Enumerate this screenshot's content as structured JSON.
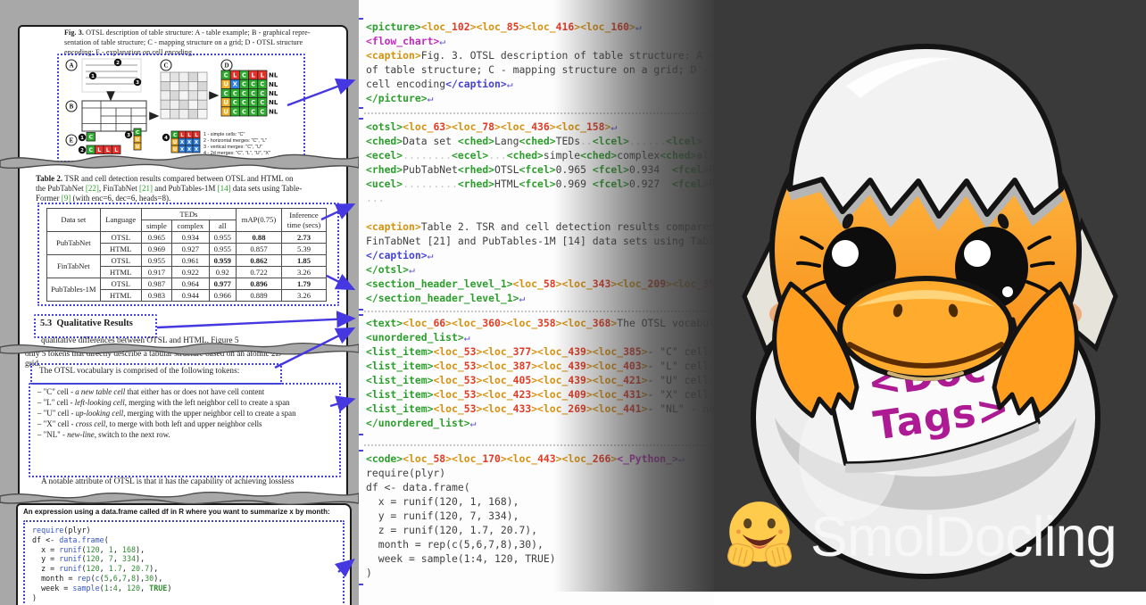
{
  "branding": {
    "title": "SmolDocling",
    "hug_emoji": "hugging-face-emoji"
  },
  "duck": {
    "paper_line1": "<Doc",
    "paper_line2": "Tags>"
  },
  "colors": {
    "tag_green": "#2b9e2b",
    "tag_orange": "#d6920f",
    "loc_number_red": "#e23b24",
    "tag_magenta": "#c32ac3",
    "tag_blue": "#4643cf",
    "return_glyph_blue": "#5a50d8",
    "arrow_blue": "#4538e0",
    "region_box_blue": "#4345d6",
    "panel_dark": "#3a3a3a",
    "duck_orange": "#f89b1c",
    "paper_note_magenta": "#ad1a94"
  },
  "paper": {
    "fig_caption": {
      "lead": "Fig. 3.",
      "line1": " OTSL description of table structure: A - table example; B - graphical repre-",
      "line2": "sentation of table structure; C - mapping structure on a grid; D - OTSL structure",
      "line3": "encoding; E - explanation on cell encoding"
    },
    "figure": {
      "part_labels": [
        "A",
        "B",
        "C",
        "D",
        "E"
      ],
      "a_marks": [
        "1",
        "2",
        "3"
      ],
      "d_grid": [
        [
          "C",
          "L",
          "C",
          "L",
          "L"
        ],
        [
          "U",
          "X",
          "C",
          "C",
          "C"
        ],
        [
          "C",
          "C",
          "C",
          "C",
          "C"
        ],
        [
          "U",
          "C",
          "C",
          "C",
          "C"
        ],
        [
          "U",
          "C",
          "C",
          "C",
          "C"
        ]
      ],
      "row_suffix": "NL",
      "e_items": [
        {
          "num": "1",
          "cells": [
            [
              "C"
            ]
          ]
        },
        {
          "num": "2",
          "cells": [
            [
              "C",
              "L",
              "L",
              "L"
            ]
          ]
        },
        {
          "num": "3",
          "cells": [
            [
              "C"
            ],
            [
              "U"
            ],
            [
              "U"
            ]
          ]
        },
        {
          "num": "4",
          "cells": [
            [
              "C",
              "L",
              "L",
              "L"
            ],
            [
              "U",
              "X",
              "X",
              "X"
            ],
            [
              "U",
              "X",
              "X",
              "X"
            ]
          ]
        }
      ],
      "legend": [
        "1 - simple cells: \"C\"",
        "2 - horizontal merges: \"C\", \"L\"",
        "3 - vertical merges: \"C\", \"U\"",
        "4 - 2d merges: \"C\", \"L\", \"U\", \"X\""
      ]
    },
    "table2": {
      "caption_lead": "Table 2.",
      "caption_lines": [
        " TSR and cell detection results compared between OTSL and HTML on",
        "the PubTabNet [22], FinTabNet [21] and PubTables-1M [14] data sets using Table-",
        "Former [9] (with enc=6, dec=6, heads=8)."
      ],
      "col_dataset": "Data set",
      "col_language": "Language",
      "col_teds": "TEDs",
      "col_simple": "simple",
      "col_complex": "complex",
      "col_all": "all",
      "col_map": "mAP(0.75)",
      "col_inference": "Inference",
      "col_time": "time (secs)",
      "rows": [
        {
          "dataset": "PubTabNet",
          "language": "OTSL",
          "simple": "0.965",
          "complex": "0.934",
          "all": "0.955",
          "map": "0.88",
          "time": "2.73",
          "bold": [
            "map",
            "time"
          ]
        },
        {
          "dataset": "",
          "language": "HTML",
          "simple": "0.969",
          "complex": "0.927",
          "all": "0.955",
          "map": "0.857",
          "time": "5.39",
          "bold": []
        },
        {
          "dataset": "FinTabNet",
          "language": "OTSL",
          "simple": "0.955",
          "complex": "0.961",
          "all": "0.959",
          "map": "0.862",
          "time": "1.85",
          "bold": [
            "all",
            "map",
            "time"
          ]
        },
        {
          "dataset": "",
          "language": "HTML",
          "simple": "0.917",
          "complex": "0.922",
          "all": "0.92",
          "map": "0.722",
          "time": "3.26",
          "bold": []
        },
        {
          "dataset": "PubTables-1M",
          "language": "OTSL",
          "simple": "0.987",
          "complex": "0.964",
          "all": "0.977",
          "map": "0.896",
          "time": "1.79",
          "bold": [
            "all",
            "map",
            "time"
          ]
        },
        {
          "dataset": "",
          "language": "HTML",
          "simple": "0.983",
          "complex": "0.944",
          "all": "0.966",
          "map": "0.889",
          "time": "3.26",
          "bold": []
        }
      ]
    },
    "section_number": "5.3",
    "section_title": "Qualitative Results",
    "para_lines": [
      "qualitative differences between OTSL and HTML. Figure 5",
      "only 5 tokens that directly describe a tabular structure based on an atomic 2D",
      "grid."
    ],
    "vocab_intro": "The OTSL vocabulary is comprised of the following tokens:",
    "vocab_items": [
      {
        "pre": "– \"C\" cell - ",
        "italic": "a new table cell",
        "rest": " that either has or does not have cell content"
      },
      {
        "pre": "– \"L\" cell - ",
        "italic": "left-looking cell",
        "rest": ", merging with the left neighbor cell to create a span"
      },
      {
        "pre": "– \"U\" cell - ",
        "italic": "up-looking cell",
        "rest": ", merging with the upper neighbor cell to create a span"
      },
      {
        "pre": "– \"X\" cell - ",
        "italic": "cross cell",
        "rest": ", to merge with both left and upper neighbor cells"
      },
      {
        "pre": "– \"NL\" - ",
        "italic": "new-line",
        "rest": ", switch to the next row."
      }
    ],
    "note_line": "A notable attribute of OTSL is that it has the capability of achieving lossless",
    "r_intro": "An expression using a data.frame called df in R where you want to summarize x by month:",
    "r_code": [
      "require(plyr)",
      "df <- data.frame(",
      "  x = runif(120, 1, 168),",
      "  y = runif(120, 7, 334),",
      "  z = runif(120, 1.7, 20.7),",
      "  month = rep(c(5,6,7,8),30),",
      "  week = sample(1:4, 120, TRUE)",
      ")"
    ]
  },
  "doctags": {
    "block_picture": [
      "<picture><loc_102><loc_85><loc_416><loc_160>↵",
      "<flow_chart>↵",
      "<caption>Fig. 3. OTSL description of table structure: A - table example",
      "of table structure; C - mapping structure on a grid; D - OTSL structure",
      "cell encoding</caption>↵",
      "</picture>↵"
    ],
    "block_otsl": [
      "<otsl><loc_63><loc_78><loc_436><loc_158>↵",
      "<ched>Data set <ched>Lang<ched>TEDs..<lcel>......<lcel>",
      "<ecel>........<ecel>...<ched>simple<ched>complex<ched>all",
      "<rhed>PubTabNet<rhed>OTSL<fcel>0.965 <fcel>0.934  <fcel>0.955",
      "<ucel>.........<rhed>HTML<fcel>0.969 <fcel>0.927  <fcel>0.955",
      "...",
      "",
      "<caption>Table 2. TSR and cell detection results compared",
      "FinTabNet [21] and PubTables-1M [14] data sets using Table",
      "</caption>↵",
      "</otsl>↵",
      "<section_header_level_1><loc_58><loc_343><loc_209><loc_351>",
      "</section_header_level_1>↵"
    ],
    "block_text": [
      "<text><loc_66><loc_360><loc_358><loc_368>The OTSL vocabula",
      "<unordered_list>↵",
      "<list_item><loc_53><loc_377><loc_439><loc_385>- \"C\" cell -",
      "<list_item><loc_53><loc_387><loc_439><loc_403>- \"L\" cell -",
      "<list_item><loc_53><loc_405><loc_439><loc_421>- \"U\" cell -",
      "<list_item><loc_53><loc_423><loc_409><loc_431>- \"X\" cell -",
      "<list_item><loc_53><loc_433><loc_269><loc_441>- \"NL\" - new",
      "</unordered_list>↵"
    ],
    "block_code": [
      "<code><loc_58><loc_170><loc_443><loc_266><_Python_>↵",
      "require(plyr)",
      "df <- data.frame(",
      "  x = runif(120, 1, 168),",
      "  y = runif(120, 7, 334),",
      "  z = runif(120, 1.7, 20.7),",
      "  month = rep(c(5,6,7,8),30),",
      "  week = sample(1:4, 120, TRUE)",
      ")"
    ]
  }
}
